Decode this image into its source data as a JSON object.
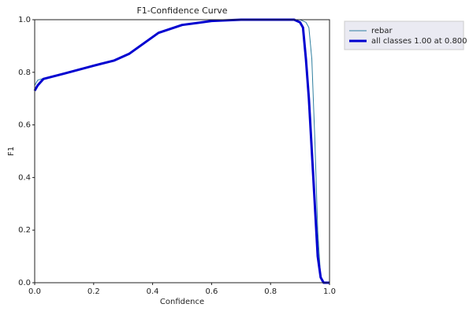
{
  "chart_data": {
    "type": "line",
    "title": "F1-Confidence Curve",
    "x_label": "Confidence",
    "y_label": "F1",
    "x": [
      0,
      0.01,
      0.03,
      0.1,
      0.2,
      0.27,
      0.32,
      0.37,
      0.42,
      0.5,
      0.6,
      0.7,
      0.8,
      0.88,
      0.9,
      0.91,
      0.92,
      0.93,
      0.94,
      0.95,
      0.96,
      0.97,
      0.98,
      1.0
    ],
    "series": [
      {
        "name": "rebar",
        "color": "#2f7fa0",
        "width": 1,
        "values": [
          0.75,
          0.77,
          0.777,
          0.795,
          0.825,
          0.845,
          0.87,
          0.91,
          0.95,
          0.98,
          0.995,
          1.0,
          1.0,
          1.0,
          1.0,
          0.995,
          0.99,
          0.97,
          0.85,
          0.55,
          0.2,
          0.02,
          0,
          0
        ]
      },
      {
        "name": "all classes 1.00 at 0.800",
        "color": "#0000d0",
        "width": 3,
        "values": [
          0.73,
          0.75,
          0.775,
          0.795,
          0.825,
          0.845,
          0.87,
          0.91,
          0.95,
          0.98,
          0.995,
          1.0,
          1.0,
          1.0,
          0.99,
          0.97,
          0.85,
          0.7,
          0.5,
          0.3,
          0.1,
          0.02,
          0,
          0
        ]
      }
    ],
    "xlim": [
      0,
      1
    ],
    "ylim": [
      0,
      1
    ],
    "xticks": [
      {
        "value": 0,
        "label": "0.0"
      },
      {
        "value": 0.2,
        "label": "0.2"
      },
      {
        "value": 0.4,
        "label": "0.4"
      },
      {
        "value": 0.6,
        "label": "0.6"
      },
      {
        "value": 0.8,
        "label": "0.8"
      },
      {
        "value": 1,
        "label": "1.0"
      }
    ],
    "yticks": [
      {
        "value": 0,
        "label": "0.0"
      },
      {
        "value": 0.2,
        "label": "0.2"
      },
      {
        "value": 0.4,
        "label": "0.4"
      },
      {
        "value": 0.6,
        "label": "0.6"
      },
      {
        "value": 0.8,
        "label": "0.8"
      },
      {
        "value": 1,
        "label": "1.0"
      }
    ],
    "legend": "upper-right-outside"
  }
}
